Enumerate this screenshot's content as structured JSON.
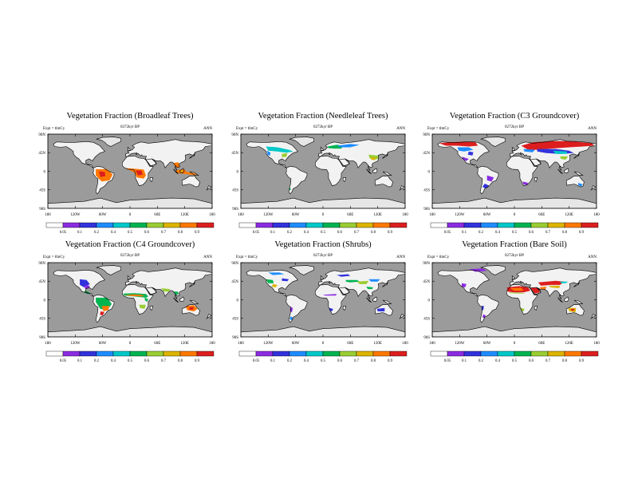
{
  "chart_data": [
    {
      "type": "heatmap",
      "title": "Vegetation Fraction (Broadleaf Trees)",
      "left_label": "Expt = tlmCy",
      "center_label": "0272kyr BP",
      "right_label": "ANN",
      "lat_ticks": [
        "90N",
        "45N",
        "0",
        "45S",
        "90S"
      ],
      "lon_ticks": [
        "180",
        "120W",
        "60W",
        "0",
        "60E",
        "120E",
        "180"
      ],
      "colorbar_ticks": [
        "0.05",
        "0.1",
        "0.2",
        "0.4",
        "0.5",
        "0.6",
        "0.7",
        "0.8",
        "0.9"
      ]
    },
    {
      "type": "heatmap",
      "title": "Vegetation Fraction (Needleleaf Trees)",
      "left_label": "Expt = tlmCy",
      "center_label": "0272kyr BP",
      "right_label": "ANN",
      "lat_ticks": [
        "90N",
        "45N",
        "0",
        "45S",
        "90S"
      ],
      "lon_ticks": [
        "180",
        "120W",
        "60W",
        "0",
        "60E",
        "120E",
        "180"
      ],
      "colorbar_ticks": [
        "0.05",
        "0.1",
        "0.2",
        "0.4",
        "0.5",
        "0.6",
        "0.7",
        "0.8",
        "0.9"
      ]
    },
    {
      "type": "heatmap",
      "title": "Vegetation Fraction (C3 Groundcover)",
      "left_label": "Expt = tlmCy",
      "center_label": "0272kyr BP",
      "right_label": "ANN",
      "lat_ticks": [
        "90N",
        "45N",
        "0",
        "45S",
        "90S"
      ],
      "lon_ticks": [
        "180",
        "120W",
        "60W",
        "0",
        "60E",
        "120E",
        "180"
      ],
      "colorbar_ticks": [
        "0.05",
        "0.1",
        "0.2",
        "0.4",
        "0.5",
        "0.6",
        "0.7",
        "0.8",
        "0.9"
      ]
    },
    {
      "type": "heatmap",
      "title": "Vegetation Fraction (C4 Groundcover)",
      "left_label": "Expt = tlmCy",
      "center_label": "0272kyr BP",
      "right_label": "ANN",
      "lat_ticks": [
        "90N",
        "45N",
        "0",
        "45S",
        "90S"
      ],
      "lon_ticks": [
        "180",
        "120W",
        "60W",
        "0",
        "60E",
        "120E",
        "180"
      ],
      "colorbar_ticks": [
        "0.05",
        "0.1",
        "0.2",
        "0.4",
        "0.5",
        "0.6",
        "0.7",
        "0.8",
        "0.9"
      ]
    },
    {
      "type": "heatmap",
      "title": "Vegetation Fraction (Shrubs)",
      "left_label": "Expt = tlmCy",
      "center_label": "0272kyr BP",
      "right_label": "ANN",
      "lat_ticks": [
        "90N",
        "45N",
        "0",
        "45S",
        "90S"
      ],
      "lon_ticks": [
        "180",
        "120W",
        "60W",
        "0",
        "60E",
        "120E",
        "180"
      ],
      "colorbar_ticks": [
        "0.05",
        "0.1",
        "0.2",
        "0.4",
        "0.5",
        "0.6",
        "0.7",
        "0.8",
        "0.9"
      ]
    },
    {
      "type": "heatmap",
      "title": "Vegetation Fraction (Bare Soil)",
      "left_label": "Expt = tlmCy",
      "center_label": "0272kyr BP",
      "right_label": "ANN",
      "lat_ticks": [
        "90N",
        "45N",
        "0",
        "45S",
        "90S"
      ],
      "lon_ticks": [
        "180",
        "120W",
        "60W",
        "0",
        "60E",
        "120E",
        "180"
      ],
      "colorbar_ticks": [
        "0.05",
        "0.1",
        "0.2",
        "0.4",
        "0.5",
        "0.6",
        "0.7",
        "0.8",
        "0.9"
      ]
    }
  ],
  "colors": {
    "ocean": "#9b9b9b",
    "land": "#f2f2f2",
    "ice": "#e6e6e6",
    "scale": [
      "#ffffff",
      "#8b2be2",
      "#3232dc",
      "#1e8cff",
      "#00c8c8",
      "#00b450",
      "#9acd32",
      "#dcb400",
      "#ff7800",
      "#dc1e1e"
    ]
  }
}
